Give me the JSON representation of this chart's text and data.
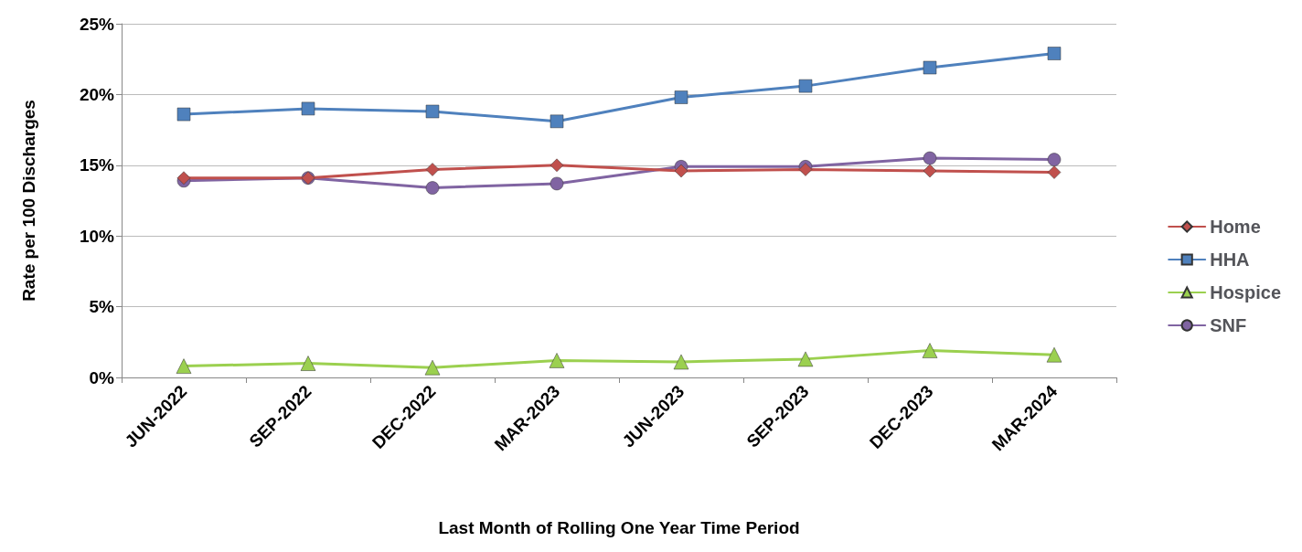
{
  "chart_data": {
    "type": "line",
    "xlabel": "Last Month of Rolling One Year Time Period",
    "ylabel": "Rate per 100 Discharges",
    "categories": [
      "JUN-2022",
      "SEP-2022",
      "DEC-2022",
      "MAR-2023",
      "JUN-2023",
      "SEP-2023",
      "DEC-2023",
      "MAR-2024"
    ],
    "series": [
      {
        "name": "Home",
        "color": "#c0504d",
        "marker": "diamond",
        "values": [
          14.1,
          14.1,
          14.7,
          15.0,
          14.6,
          14.7,
          14.6,
          14.5
        ]
      },
      {
        "name": "HHA",
        "color": "#4f81bd",
        "marker": "square",
        "values": [
          18.6,
          19.0,
          18.8,
          18.1,
          19.8,
          20.6,
          21.9,
          22.9
        ]
      },
      {
        "name": "Hospice",
        "color": "#9bd04f",
        "marker": "triangle",
        "values": [
          0.8,
          1.0,
          0.7,
          1.2,
          1.1,
          1.3,
          1.9,
          1.6
        ]
      },
      {
        "name": "SNF",
        "color": "#8064a2",
        "marker": "circle",
        "values": [
          13.9,
          14.1,
          13.4,
          13.7,
          14.9,
          14.9,
          15.5,
          15.4
        ]
      }
    ],
    "ylim": [
      0,
      25
    ],
    "yticks": [
      {
        "value": 0,
        "label": "0%"
      },
      {
        "value": 5,
        "label": "5%"
      },
      {
        "value": 10,
        "label": "10%"
      },
      {
        "value": 15,
        "label": "15%"
      },
      {
        "value": 20,
        "label": "20%"
      },
      {
        "value": 25,
        "label": "25%"
      }
    ],
    "grid": "y",
    "legend": "right",
    "line_style": "solid"
  }
}
